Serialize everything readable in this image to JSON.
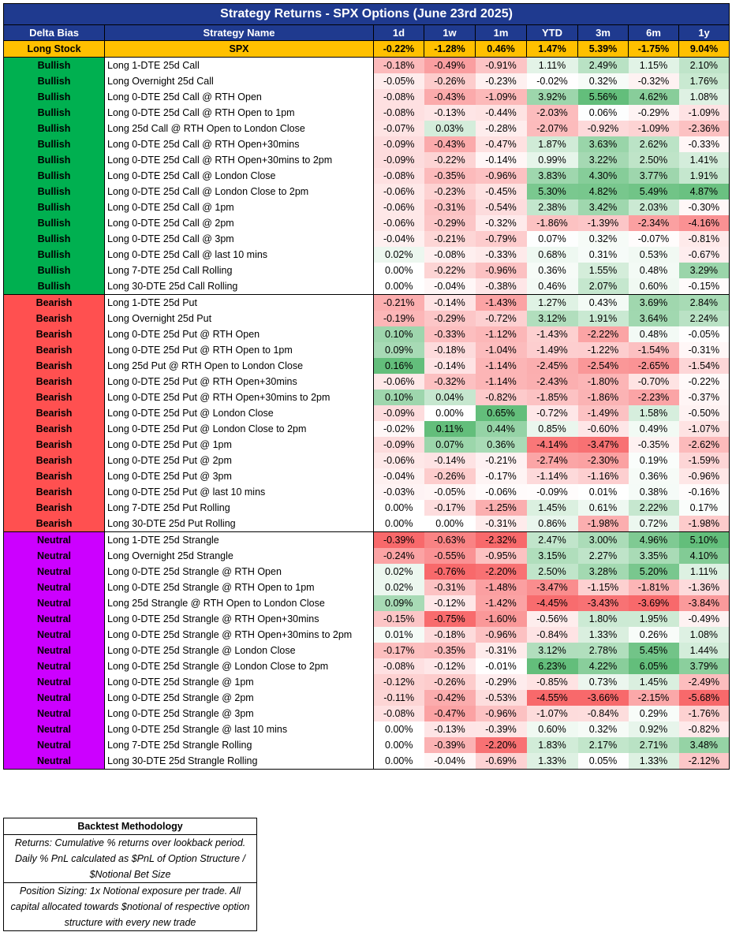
{
  "title": "Strategy Returns - SPX Options (June 23rd 2025)",
  "headers": {
    "bias": "Delta Bias",
    "name": "Strategy Name",
    "periods": [
      "1d",
      "1w",
      "1m",
      "YTD",
      "3m",
      "6m",
      "1y"
    ]
  },
  "colors": {
    "header_bg": "#1f3a8f",
    "spx_row_bg": "#ffc000",
    "bullish_bg": "#00b050",
    "bearish_bg": "#ff5050",
    "neutral_bg": "#cc00ff",
    "positive_scale": "#63be7b",
    "negative_scale": "#f8696b"
  },
  "spx_row": {
    "bias": "Long Stock",
    "name": "SPX",
    "values": [
      "-0.22%",
      "-1.28%",
      "0.46%",
      "1.47%",
      "5.39%",
      "-1.75%",
      "9.04%"
    ]
  },
  "chart_data": {
    "type": "table",
    "title": "Strategy Returns - SPX Options (June 23rd 2025)",
    "columns": [
      "Delta Bias",
      "Strategy Name",
      "1d",
      "1w",
      "1m",
      "YTD",
      "3m",
      "6m",
      "1y"
    ],
    "groups": [
      {
        "bias": "Bullish",
        "rows": [
          {
            "name": "Long 1-DTE 25d Call",
            "values": [
              "-0.18%",
              "-0.49%",
              "-0.91%",
              "1.11%",
              "2.49%",
              "1.15%",
              "2.10%"
            ]
          },
          {
            "name": "Long Overnight 25d Call",
            "values": [
              "-0.05%",
              "-0.26%",
              "-0.23%",
              "-0.02%",
              "0.32%",
              "-0.32%",
              "1.76%"
            ]
          },
          {
            "name": "Long 0-DTE 25d Call @ RTH Open",
            "values": [
              "-0.08%",
              "-0.43%",
              "-1.09%",
              "3.92%",
              "5.56%",
              "4.62%",
              "1.08%"
            ]
          },
          {
            "name": "Long 0-DTE 25d Call @ RTH Open to 1pm",
            "values": [
              "-0.08%",
              "-0.13%",
              "-0.44%",
              "-2.03%",
              "0.06%",
              "-0.29%",
              "-1.09%"
            ]
          },
          {
            "name": "Long 25d Call @ RTH Open to London Close",
            "values": [
              "-0.07%",
              "0.03%",
              "-0.28%",
              "-2.07%",
              "-0.92%",
              "-1.09%",
              "-2.36%"
            ]
          },
          {
            "name": "Long 0-DTE 25d Call @ RTH Open+30mins",
            "values": [
              "-0.09%",
              "-0.43%",
              "-0.47%",
              "1.87%",
              "3.63%",
              "2.62%",
              "-0.33%"
            ]
          },
          {
            "name": "Long 0-DTE 25d Call @ RTH Open+30mins to 2pm",
            "values": [
              "-0.09%",
              "-0.22%",
              "-0.14%",
              "0.99%",
              "3.22%",
              "2.50%",
              "1.41%"
            ]
          },
          {
            "name": "Long 0-DTE 25d Call @ London Close",
            "values": [
              "-0.08%",
              "-0.35%",
              "-0.96%",
              "3.83%",
              "4.30%",
              "3.77%",
              "1.91%"
            ]
          },
          {
            "name": "Long 0-DTE 25d Call @ London Close to 2pm",
            "values": [
              "-0.06%",
              "-0.23%",
              "-0.45%",
              "5.30%",
              "4.82%",
              "5.49%",
              "4.87%"
            ]
          },
          {
            "name": "Long 0-DTE 25d Call @ 1pm",
            "values": [
              "-0.06%",
              "-0.31%",
              "-0.54%",
              "2.38%",
              "3.42%",
              "2.03%",
              "-0.30%"
            ]
          },
          {
            "name": "Long 0-DTE 25d Call @ 2pm",
            "values": [
              "-0.06%",
              "-0.29%",
              "-0.32%",
              "-1.86%",
              "-1.39%",
              "-2.34%",
              "-4.16%"
            ]
          },
          {
            "name": "Long 0-DTE 25d Call @ 3pm",
            "values": [
              "-0.04%",
              "-0.21%",
              "-0.79%",
              "0.07%",
              "0.32%",
              "-0.07%",
              "-0.81%"
            ]
          },
          {
            "name": "Long 0-DTE 25d Call @ last 10 mins",
            "values": [
              "0.02%",
              "-0.08%",
              "-0.33%",
              "0.68%",
              "0.31%",
              "0.53%",
              "-0.67%"
            ]
          },
          {
            "name": "Long 7-DTE 25d Call Rolling",
            "values": [
              "0.00%",
              "-0.22%",
              "-0.96%",
              "0.36%",
              "1.55%",
              "0.48%",
              "3.29%"
            ]
          },
          {
            "name": "Long 30-DTE 25d Call Rolling",
            "values": [
              "0.00%",
              "-0.04%",
              "-0.38%",
              "0.46%",
              "2.07%",
              "0.60%",
              "-0.15%"
            ]
          }
        ]
      },
      {
        "bias": "Bearish",
        "rows": [
          {
            "name": "Long 1-DTE 25d Put",
            "values": [
              "-0.21%",
              "-0.14%",
              "-1.43%",
              "1.27%",
              "0.43%",
              "3.69%",
              "2.84%"
            ]
          },
          {
            "name": "Long Overnight 25d Put",
            "values": [
              "-0.19%",
              "-0.29%",
              "-0.72%",
              "3.12%",
              "1.91%",
              "3.64%",
              "2.24%"
            ]
          },
          {
            "name": "Long 0-DTE 25d Put @ RTH Open",
            "values": [
              "0.10%",
              "-0.33%",
              "-1.12%",
              "-1.43%",
              "-2.22%",
              "0.48%",
              "-0.05%"
            ]
          },
          {
            "name": "Long 0-DTE 25d Put @ RTH Open to 1pm",
            "values": [
              "0.09%",
              "-0.18%",
              "-1.04%",
              "-1.49%",
              "-1.22%",
              "-1.54%",
              "-0.31%"
            ]
          },
          {
            "name": "Long 25d Put @ RTH Open to London Close",
            "values": [
              "0.16%",
              "-0.14%",
              "-1.14%",
              "-2.45%",
              "-2.54%",
              "-2.65%",
              "-1.54%"
            ]
          },
          {
            "name": "Long 0-DTE 25d Put @ RTH Open+30mins",
            "values": [
              "-0.06%",
              "-0.32%",
              "-1.14%",
              "-2.43%",
              "-1.80%",
              "-0.70%",
              "-0.22%"
            ]
          },
          {
            "name": "Long 0-DTE 25d Put @ RTH Open+30mins to 2pm",
            "values": [
              "0.10%",
              "0.04%",
              "-0.82%",
              "-1.85%",
              "-1.86%",
              "-2.23%",
              "-0.37%"
            ]
          },
          {
            "name": "Long 0-DTE 25d Put @ London Close",
            "values": [
              "-0.09%",
              "0.00%",
              "0.65%",
              "-0.72%",
              "-1.49%",
              "1.58%",
              "-0.50%"
            ]
          },
          {
            "name": "Long 0-DTE 25d Put @ London Close to 2pm",
            "values": [
              "-0.02%",
              "0.11%",
              "0.44%",
              "0.85%",
              "-0.60%",
              "0.49%",
              "-1.07%"
            ]
          },
          {
            "name": "Long 0-DTE 25d Put @ 1pm",
            "values": [
              "-0.09%",
              "0.07%",
              "0.36%",
              "-4.14%",
              "-3.47%",
              "-0.35%",
              "-2.62%"
            ]
          },
          {
            "name": "Long 0-DTE 25d Put @ 2pm",
            "values": [
              "-0.06%",
              "-0.14%",
              "-0.21%",
              "-2.74%",
              "-2.30%",
              "0.19%",
              "-1.59%"
            ]
          },
          {
            "name": "Long 0-DTE 25d Put @ 3pm",
            "values": [
              "-0.04%",
              "-0.26%",
              "-0.17%",
              "-1.14%",
              "-1.16%",
              "0.36%",
              "-0.96%"
            ]
          },
          {
            "name": "Long 0-DTE 25d Put @ last 10 mins",
            "values": [
              "-0.03%",
              "-0.05%",
              "-0.06%",
              "-0.09%",
              "0.01%",
              "0.38%",
              "-0.16%"
            ]
          },
          {
            "name": "Long 7-DTE 25d Put Rolling",
            "values": [
              "0.00%",
              "-0.17%",
              "-1.25%",
              "1.45%",
              "0.61%",
              "2.22%",
              "0.17%"
            ]
          },
          {
            "name": "Long 30-DTE 25d Put Rolling",
            "values": [
              "0.00%",
              "0.00%",
              "-0.31%",
              "0.86%",
              "-1.98%",
              "0.72%",
              "-1.98%"
            ]
          }
        ]
      },
      {
        "bias": "Neutral",
        "rows": [
          {
            "name": "Long 1-DTE 25d Strangle",
            "values": [
              "-0.39%",
              "-0.63%",
              "-2.32%",
              "2.47%",
              "3.00%",
              "4.96%",
              "5.10%"
            ]
          },
          {
            "name": "Long Overnight 25d Strangle",
            "values": [
              "-0.24%",
              "-0.55%",
              "-0.95%",
              "3.15%",
              "2.27%",
              "3.35%",
              "4.10%"
            ]
          },
          {
            "name": "Long 0-DTE 25d Strangle @ RTH Open",
            "values": [
              "0.02%",
              "-0.76%",
              "-2.20%",
              "2.50%",
              "3.28%",
              "5.20%",
              "1.11%"
            ]
          },
          {
            "name": "Long 0-DTE 25d Strangle @ RTH Open to 1pm",
            "values": [
              "0.02%",
              "-0.31%",
              "-1.48%",
              "-3.47%",
              "-1.15%",
              "-1.81%",
              "-1.36%"
            ]
          },
          {
            "name": "Long 25d Strangle @ RTH Open to London Close",
            "values": [
              "0.09%",
              "-0.12%",
              "-1.42%",
              "-4.45%",
              "-3.43%",
              "-3.69%",
              "-3.84%"
            ]
          },
          {
            "name": "Long 0-DTE 25d Strangle @ RTH Open+30mins",
            "values": [
              "-0.15%",
              "-0.75%",
              "-1.60%",
              "-0.56%",
              "1.80%",
              "1.95%",
              "-0.49%"
            ]
          },
          {
            "name": "Long 0-DTE 25d Strangle @ RTH Open+30mins to 2pm",
            "values": [
              "0.01%",
              "-0.18%",
              "-0.96%",
              "-0.84%",
              "1.33%",
              "0.26%",
              "1.08%"
            ]
          },
          {
            "name": "Long 0-DTE 25d Strangle @ London Close",
            "values": [
              "-0.17%",
              "-0.35%",
              "-0.31%",
              "3.12%",
              "2.78%",
              "5.45%",
              "1.44%"
            ]
          },
          {
            "name": "Long 0-DTE 25d Strangle @ London Close to 2pm",
            "values": [
              "-0.08%",
              "-0.12%",
              "-0.01%",
              "6.23%",
              "4.22%",
              "6.05%",
              "3.79%"
            ]
          },
          {
            "name": "Long 0-DTE 25d Strangle @ 1pm",
            "values": [
              "-0.12%",
              "-0.26%",
              "-0.29%",
              "-0.85%",
              "0.73%",
              "1.45%",
              "-2.49%"
            ]
          },
          {
            "name": "Long 0-DTE 25d Strangle @ 2pm",
            "values": [
              "-0.11%",
              "-0.42%",
              "-0.53%",
              "-4.55%",
              "-3.66%",
              "-2.15%",
              "-5.68%"
            ]
          },
          {
            "name": "Long 0-DTE 25d Strangle @ 3pm",
            "values": [
              "-0.08%",
              "-0.47%",
              "-0.96%",
              "-1.07%",
              "-0.84%",
              "0.29%",
              "-1.76%"
            ]
          },
          {
            "name": "Long 0-DTE 25d Strangle @ last 10 mins",
            "values": [
              "0.00%",
              "-0.13%",
              "-0.39%",
              "0.60%",
              "0.32%",
              "0.92%",
              "-0.82%"
            ]
          },
          {
            "name": "Long 7-DTE 25d Strangle Rolling",
            "values": [
              "0.00%",
              "-0.39%",
              "-2.20%",
              "1.83%",
              "2.17%",
              "2.71%",
              "3.48%"
            ]
          },
          {
            "name": "Long 30-DTE 25d Strangle Rolling",
            "values": [
              "0.00%",
              "-0.04%",
              "-0.69%",
              "1.33%",
              "0.05%",
              "1.33%",
              "-2.12%"
            ]
          }
        ]
      }
    ]
  },
  "methodology": {
    "title": "Backtest Methodology",
    "returns_text": "Returns: Cumulative % returns over lookback period. Daily % PnL calculated as $PnL of Option Structure / $Notional Bet Size",
    "sizing_text": "Position Sizing: 1x Notional exposure per trade. All capital allocated towards $notional of respective option structure with every new trade"
  }
}
